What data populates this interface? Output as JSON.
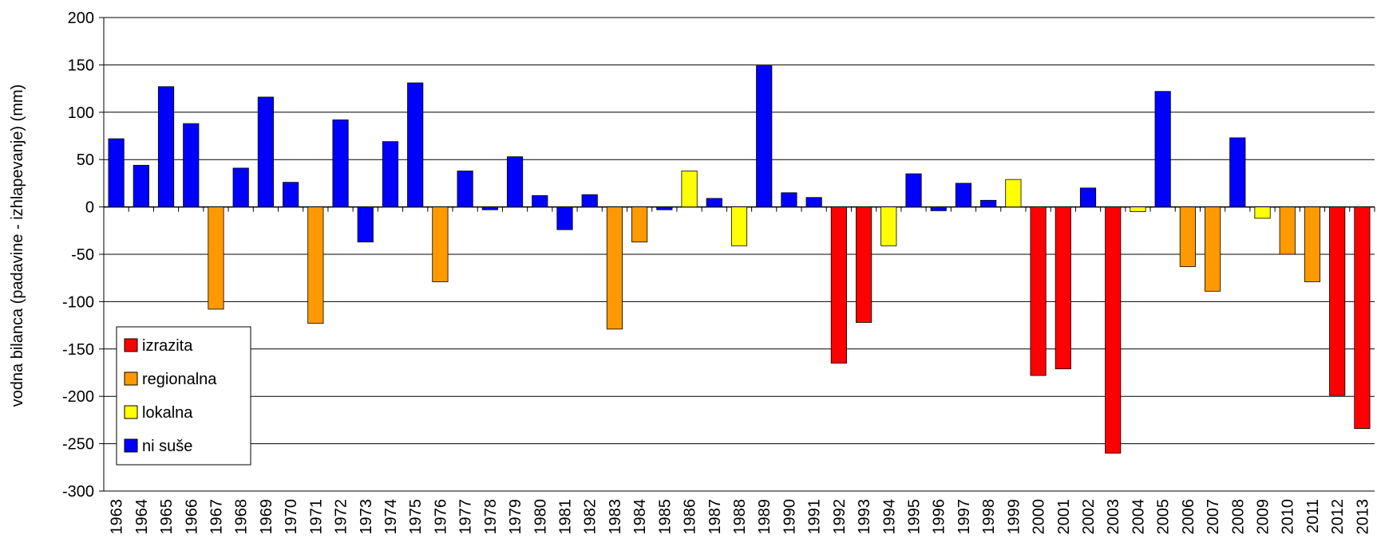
{
  "chart_data": {
    "type": "bar",
    "y_label": "vodna bilanca (padavine - izhlapevanje) (mm)",
    "categories": [
      "1963",
      "1964",
      "1965",
      "1966",
      "1967",
      "1968",
      "1969",
      "1970",
      "1971",
      "1972",
      "1973",
      "1974",
      "1975",
      "1976",
      "1977",
      "1978",
      "1979",
      "1980",
      "1981",
      "1982",
      "1983",
      "1984",
      "1985",
      "1986",
      "1987",
      "1988",
      "1989",
      "1990",
      "1991",
      "1992",
      "1993",
      "1994",
      "1995",
      "1996",
      "1997",
      "1998",
      "1999",
      "2000",
      "2001",
      "2002",
      "2003",
      "2004",
      "2005",
      "2006",
      "2007",
      "2008",
      "2009",
      "2010",
      "2011",
      "2012",
      "2013"
    ],
    "series": [
      {
        "name": "izrazita",
        "color": "#ff0000",
        "values": [
          null,
          null,
          null,
          null,
          null,
          null,
          null,
          null,
          null,
          null,
          null,
          null,
          null,
          null,
          null,
          null,
          null,
          null,
          null,
          null,
          null,
          null,
          null,
          null,
          null,
          null,
          null,
          null,
          null,
          -165,
          -122,
          null,
          null,
          null,
          null,
          null,
          null,
          -178,
          -171,
          null,
          -260,
          null,
          null,
          null,
          null,
          null,
          null,
          null,
          null,
          -199,
          -234
        ]
      },
      {
        "name": "regionalna",
        "color": "#ff9900",
        "values": [
          null,
          null,
          null,
          null,
          -108,
          null,
          null,
          null,
          -123,
          null,
          null,
          null,
          null,
          -79,
          null,
          null,
          null,
          null,
          null,
          null,
          -129,
          -37,
          null,
          null,
          null,
          null,
          null,
          null,
          null,
          null,
          null,
          null,
          null,
          null,
          null,
          null,
          null,
          null,
          null,
          null,
          null,
          null,
          null,
          -63,
          -89,
          null,
          null,
          -50,
          -79,
          null,
          null
        ]
      },
      {
        "name": "lokalna",
        "color": "#ffff00",
        "values": [
          null,
          null,
          null,
          null,
          null,
          null,
          null,
          null,
          null,
          null,
          null,
          null,
          null,
          null,
          null,
          null,
          null,
          null,
          null,
          null,
          null,
          null,
          null,
          38,
          null,
          -41,
          null,
          null,
          null,
          null,
          null,
          -41,
          null,
          null,
          null,
          null,
          29,
          null,
          null,
          null,
          null,
          -5,
          null,
          null,
          null,
          null,
          -12,
          null,
          null,
          null,
          null
        ]
      },
      {
        "name": "ni suše",
        "color": "#0000ff",
        "values": [
          72,
          44,
          127,
          88,
          null,
          41,
          116,
          26,
          null,
          92,
          -37,
          69,
          131,
          null,
          38,
          -3,
          53,
          12,
          -24,
          13,
          null,
          null,
          -3,
          null,
          9,
          null,
          149,
          15,
          10,
          null,
          null,
          null,
          35,
          -4,
          25,
          7,
          null,
          null,
          null,
          20,
          null,
          null,
          122,
          null,
          null,
          73,
          null,
          null,
          null,
          null,
          null
        ]
      }
    ],
    "ylim": [
      -300,
      200
    ],
    "yticks": [
      -300,
      -250,
      -200,
      -150,
      -100,
      -50,
      0,
      50,
      100,
      150,
      200
    ],
    "grid": true
  }
}
